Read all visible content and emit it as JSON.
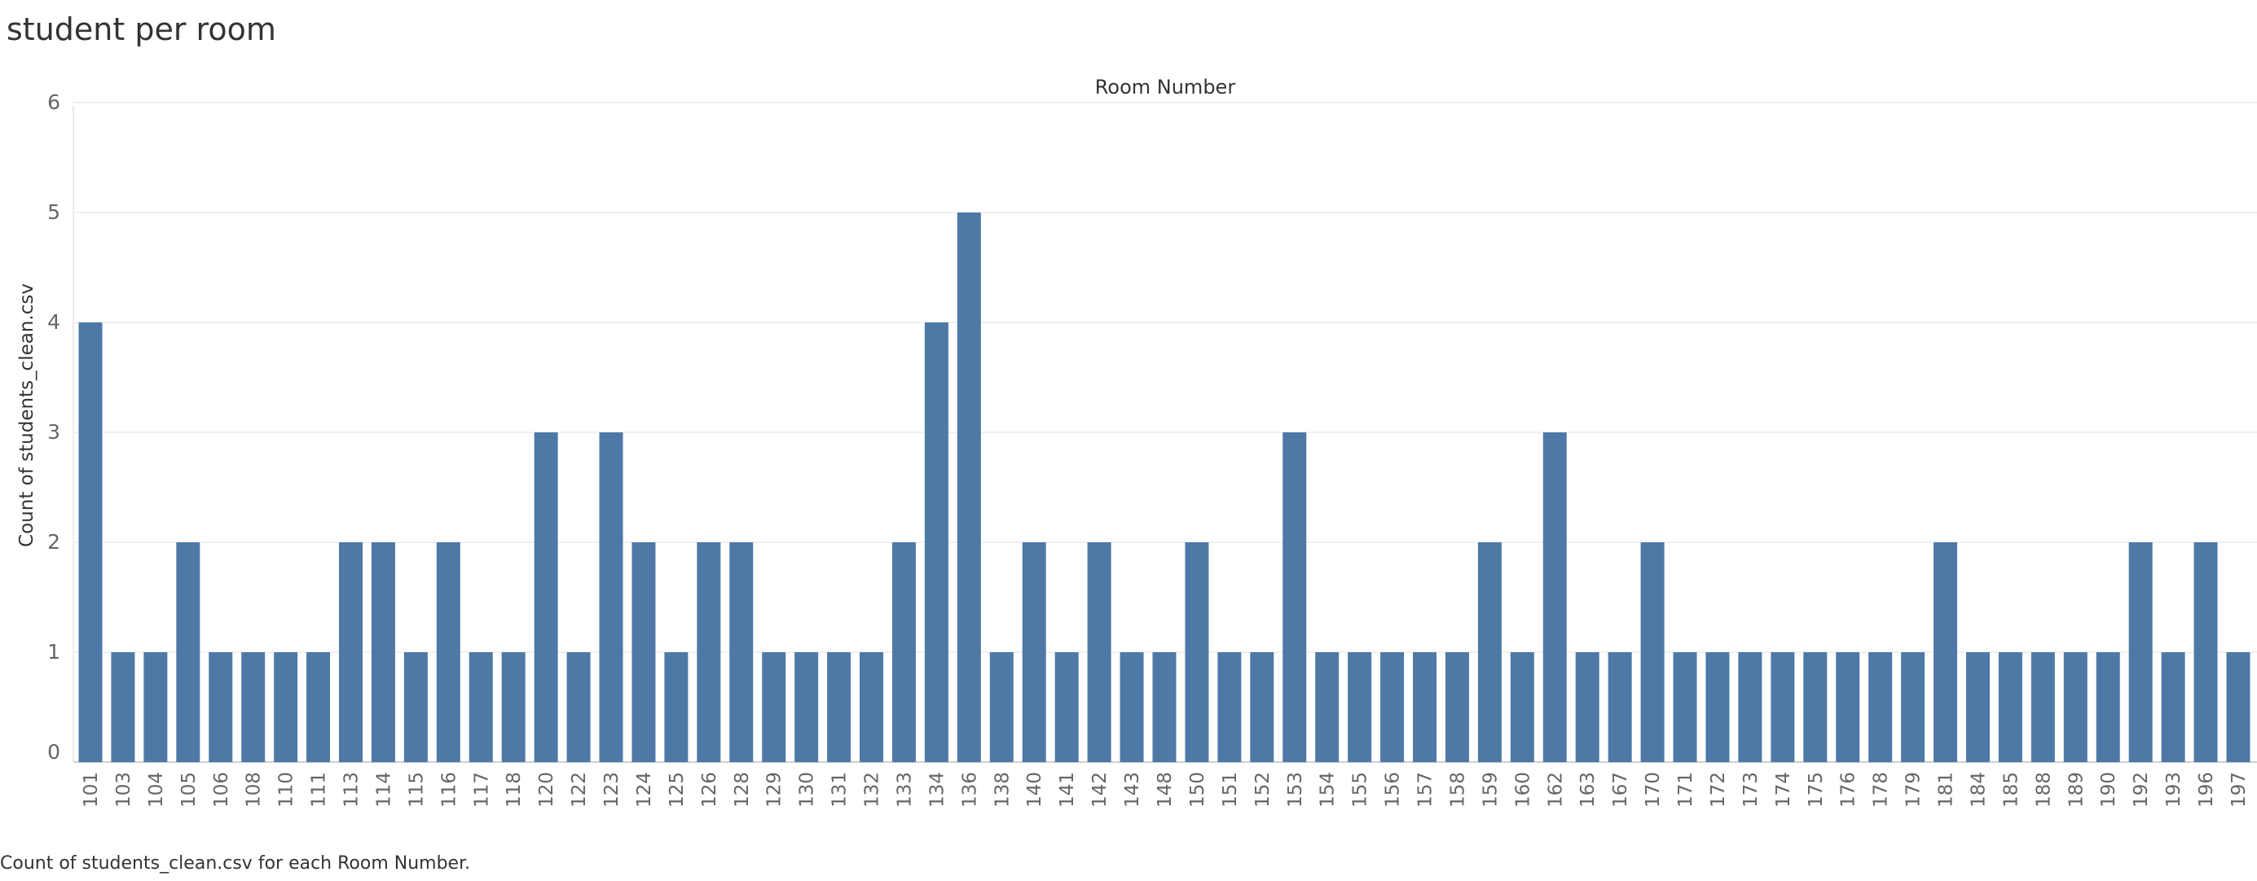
{
  "title": "student per room",
  "caption": "Count of students_clean.csv for each Room Number.",
  "chart_data": {
    "type": "bar",
    "title": "student per room",
    "column_header": "Room Number",
    "xlabel": "",
    "ylabel": "Count of students_clean.csv",
    "ylim": [
      0,
      6
    ],
    "yticks": [
      0,
      1,
      2,
      3,
      4,
      5,
      6
    ],
    "grid": true,
    "bar_color": "#4e79a7",
    "categories": [
      "101",
      "103",
      "104",
      "105",
      "106",
      "108",
      "110",
      "111",
      "113",
      "114",
      "115",
      "116",
      "117",
      "118",
      "120",
      "122",
      "123",
      "124",
      "125",
      "126",
      "128",
      "129",
      "130",
      "131",
      "132",
      "133",
      "134",
      "136",
      "138",
      "140",
      "141",
      "142",
      "143",
      "148",
      "150",
      "151",
      "152",
      "153",
      "154",
      "155",
      "156",
      "157",
      "158",
      "159",
      "160",
      "162",
      "163",
      "167",
      "170",
      "171",
      "172",
      "173",
      "174",
      "175",
      "176",
      "178",
      "179",
      "181",
      "184",
      "185",
      "188",
      "189",
      "190",
      "192",
      "193",
      "196",
      "197"
    ],
    "values": [
      4,
      1,
      1,
      2,
      1,
      1,
      1,
      1,
      2,
      2,
      1,
      2,
      1,
      1,
      3,
      1,
      3,
      2,
      1,
      2,
      2,
      1,
      1,
      1,
      1,
      2,
      4,
      5,
      1,
      2,
      1,
      2,
      1,
      1,
      2,
      1,
      1,
      3,
      1,
      1,
      1,
      1,
      1,
      2,
      1,
      3,
      1,
      1,
      2,
      1,
      1,
      1,
      1,
      1,
      1,
      1,
      1,
      2,
      1,
      1,
      1,
      1,
      1,
      2,
      1,
      2,
      1
    ]
  }
}
